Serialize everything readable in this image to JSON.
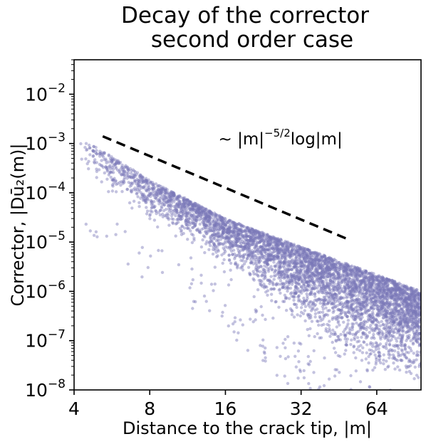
{
  "chart_data": {
    "type": "scatter",
    "title_lines": [
      "Decay of the corrector",
      "second order case"
    ],
    "xlabel": "Distance to the crack tip, |m|",
    "ylabel": "Corrector, |Dū₂(m)|",
    "x_scale": "log2",
    "y_scale": "log10",
    "xlim": [
      4,
      96
    ],
    "ylim": [
      1e-08,
      0.05
    ],
    "x_ticks": [
      4,
      8,
      16,
      32,
      64
    ],
    "x_tick_labels": [
      "4",
      "8",
      "16",
      "32",
      "64"
    ],
    "y_ticks": [
      1e-08,
      1e-07,
      1e-06,
      1e-05,
      0.0001,
      0.001,
      0.01
    ],
    "y_tick_exponents": [
      "−8",
      "−7",
      "−6",
      "−5",
      "−4",
      "−3",
      "−2"
    ],
    "grid": false,
    "point_color": "#7b78b8",
    "series": [
      {
        "upper_envelope": {
          "x": [
            4.2,
            5,
            8,
            16,
            32,
            64,
            96
          ],
          "y": [
            0.0012,
            0.0008,
            0.00018,
            3e-05,
            8e-06,
            2.2e-06,
            1e-06
          ]
        },
        "lower_envelope": {
          "x": [
            4.2,
            5,
            8,
            16,
            32,
            64,
            96
          ],
          "y": [
            0.0003,
            0.00012,
            2e-05,
            2.5e-06,
            1e-07,
            1e-08,
            1e-08
          ]
        }
      }
    ],
    "reference_line": {
      "style": "dashed",
      "color": "#000000",
      "x": [
        5.2,
        50
      ],
      "y": [
        0.0014,
        1.1e-05
      ],
      "label_text": "~ |m|",
      "label_exp": "−5/2",
      "label_tail": "log|m|",
      "label_x": 15,
      "label_y": 0.00095
    },
    "y_tick_base": "10"
  }
}
